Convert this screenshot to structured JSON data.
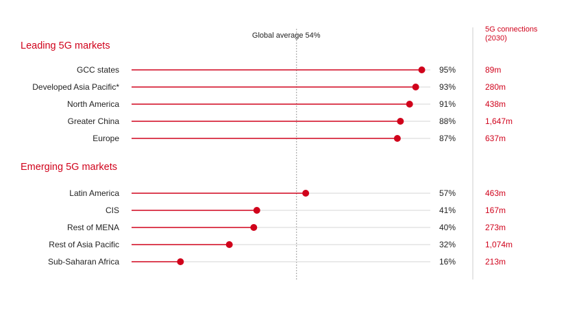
{
  "chart_data": {
    "type": "lollipop",
    "unit": "%",
    "xlim": [
      0,
      100
    ],
    "global_average": {
      "label": "Global average 54%",
      "value": 54
    },
    "connections_header": [
      "5G connections",
      "(2030)"
    ],
    "groups": [
      {
        "title": "Leading 5G markets",
        "rows": [
          {
            "label": "GCC states",
            "value": 95,
            "value_label": "95%",
            "connections": "89m"
          },
          {
            "label": "Developed Asia Pacific*",
            "value": 93,
            "value_label": "93%",
            "connections": "280m"
          },
          {
            "label": "North America",
            "value": 91,
            "value_label": "91%",
            "connections": "438m"
          },
          {
            "label": "Greater China",
            "value": 88,
            "value_label": "88%",
            "connections": "1,647m"
          },
          {
            "label": "Europe",
            "value": 87,
            "value_label": "87%",
            "connections": "637m"
          }
        ]
      },
      {
        "title": "Emerging 5G markets",
        "rows": [
          {
            "label": "Latin America",
            "value": 57,
            "value_label": "57%",
            "connections": "463m"
          },
          {
            "label": "CIS",
            "value": 41,
            "value_label": "41%",
            "connections": "167m"
          },
          {
            "label": "Rest of MENA",
            "value": 40,
            "value_label": "40%",
            "connections": "273m"
          },
          {
            "label": "Rest of Asia Pacific",
            "value": 32,
            "value_label": "32%",
            "connections": "1,074m"
          },
          {
            "label": "Sub-Saharan Africa",
            "value": 16,
            "value_label": "16%",
            "connections": "213m"
          }
        ]
      }
    ],
    "colors": {
      "accent": "#d0021b",
      "track": "#d6d6d6",
      "text": "#222222",
      "divider": "#cccccc"
    }
  }
}
